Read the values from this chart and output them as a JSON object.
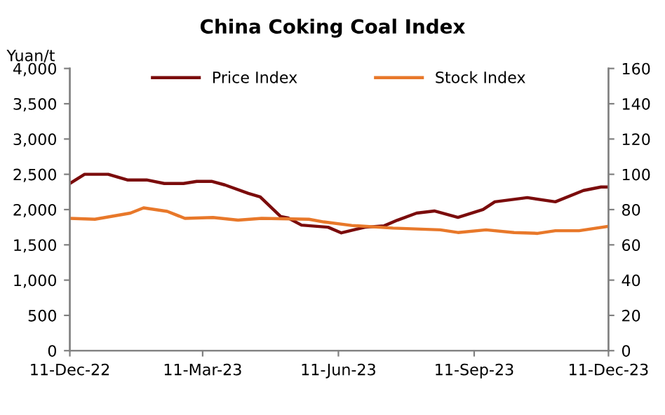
{
  "chart_data": {
    "type": "line",
    "title": "China Coking Coal Index",
    "ylabel": "Yuan/t",
    "xlim": [
      "2022-12-11",
      "2023-12-11"
    ],
    "xticks": [
      {
        "value": "2022-12-11",
        "label": "11-Dec-22"
      },
      {
        "value": "2023-03-11",
        "label": "11-Mar-23"
      },
      {
        "value": "2023-06-11",
        "label": "11-Jun-23"
      },
      {
        "value": "2023-09-11",
        "label": "11-Sep-23"
      },
      {
        "value": "2023-12-11",
        "label": "11-Dec-23"
      }
    ],
    "ylim": [
      0,
      4000
    ],
    "yticks": [
      {
        "value": 0,
        "label": "0"
      },
      {
        "value": 500,
        "label": "500"
      },
      {
        "value": 1000,
        "label": "1,000"
      },
      {
        "value": 1500,
        "label": "1,500"
      },
      {
        "value": 2000,
        "label": "2,000"
      },
      {
        "value": 2500,
        "label": "2,500"
      },
      {
        "value": 3000,
        "label": "3,000"
      },
      {
        "value": 3500,
        "label": "3,500"
      },
      {
        "value": 4000,
        "label": "4,000"
      }
    ],
    "y2lim": [
      0,
      160
    ],
    "y2ticks": [
      0,
      20,
      40,
      60,
      80,
      100,
      120,
      140,
      160
    ],
    "grid": false,
    "legend": "top",
    "marker": "none",
    "line_style": "solid",
    "series": [
      {
        "name": "Price Index",
        "color": "#7b0c0c",
        "x": [
          "2022-12-11",
          "2022-12-21",
          "2023-01-06",
          "2023-01-19",
          "2023-02-01",
          "2023-02-13",
          "2023-02-26",
          "2023-03-07",
          "2023-03-17",
          "2023-03-26",
          "2023-04-11",
          "2023-04-19",
          "2023-05-03",
          "2023-05-08",
          "2023-05-17",
          "2023-06-04",
          "2023-06-13",
          "2023-06-29",
          "2023-07-12",
          "2023-07-21",
          "2023-08-03",
          "2023-08-15",
          "2023-08-31",
          "2023-09-17",
          "2023-09-25",
          "2023-10-17",
          "2023-11-05",
          "2023-11-24",
          "2023-12-06",
          "2023-12-11"
        ],
        "values": [
          2370,
          2500,
          2500,
          2420,
          2420,
          2370,
          2370,
          2400,
          2400,
          2350,
          2230,
          2180,
          1900,
          1880,
          1780,
          1750,
          1670,
          1750,
          1770,
          1850,
          1950,
          1980,
          1890,
          2000,
          2110,
          2170,
          2110,
          2270,
          2320,
          2320
        ]
      },
      {
        "name": "Stock Index",
        "color": "#e8782a",
        "axis": "y2",
        "x": [
          "2022-12-11",
          "2022-12-28",
          "2023-01-21",
          "2023-01-30",
          "2023-02-15",
          "2023-02-27",
          "2023-03-18",
          "2023-04-04",
          "2023-04-20",
          "2023-05-22",
          "2023-06-01",
          "2023-06-20",
          "2023-07-18",
          "2023-08-19",
          "2023-08-31",
          "2023-09-19",
          "2023-10-08",
          "2023-10-24",
          "2023-11-05",
          "2023-11-21",
          "2023-12-11"
        ],
        "values": [
          75,
          74.5,
          78,
          81,
          79,
          75,
          75.5,
          74,
          75,
          74.5,
          73,
          71,
          69.5,
          68.5,
          67,
          68.5,
          67,
          66.5,
          68,
          68,
          70.5
        ]
      }
    ]
  }
}
